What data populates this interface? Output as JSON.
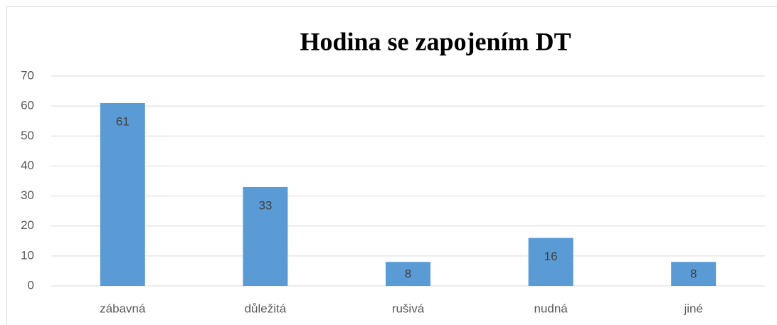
{
  "chart_data": {
    "type": "bar",
    "title": "Hodina se zapojením DT",
    "categories": [
      "zábavná",
      "důležitá",
      "rušivá",
      "nudná",
      "jiné"
    ],
    "values": [
      61,
      33,
      8,
      16,
      8
    ],
    "color": "#5b9bd5",
    "ylim": [
      0,
      70
    ],
    "yticks": [
      0,
      10,
      20,
      30,
      40,
      50,
      60,
      70
    ],
    "grid": true
  }
}
